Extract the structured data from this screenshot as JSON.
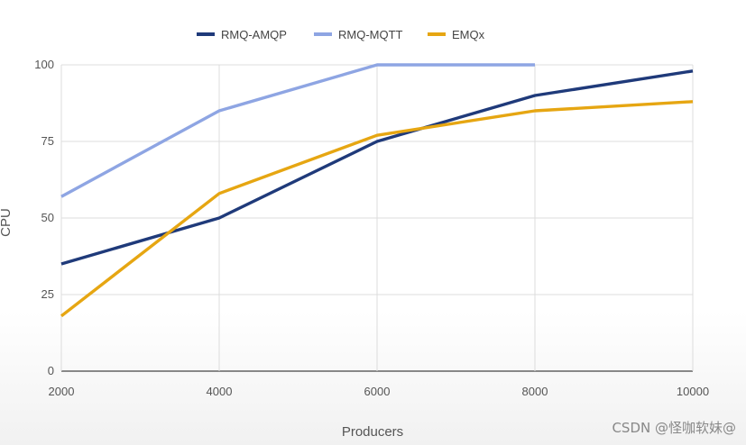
{
  "chart_data": {
    "type": "line",
    "title": "",
    "xlabel": "Producers",
    "ylabel": "CPU",
    "x": [
      2000,
      4000,
      6000,
      8000,
      10000
    ],
    "x_tick_labels": [
      "2000",
      "4000",
      "6000",
      "8000",
      "10000"
    ],
    "y_tick_labels": [
      "0",
      "25",
      "50",
      "75",
      "100"
    ],
    "ylim": [
      0,
      100
    ],
    "xlim": [
      2000,
      10000
    ],
    "grid": true,
    "legend_position": "top",
    "series": [
      {
        "name": "RMQ-AMQP",
        "color": "#1f3a7a",
        "values": [
          35,
          50,
          75,
          90,
          98
        ]
      },
      {
        "name": "RMQ-MQTT",
        "color": "#8ea5e3",
        "values": [
          57,
          85,
          100,
          100,
          null
        ]
      },
      {
        "name": "EMQx",
        "color": "#e6a612",
        "values": [
          18,
          58,
          77,
          85,
          88
        ]
      }
    ]
  },
  "watermark": "CSDN @怪咖软妹@"
}
